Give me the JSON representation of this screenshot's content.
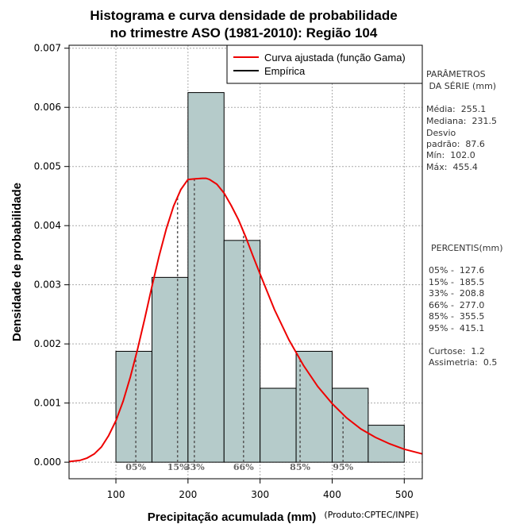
{
  "chart_data": {
    "type": "bar",
    "title_line1": "Histograma e curva densidade de probabilidade",
    "title_line2": "no trimestre ASO (1981-2010): Região 104",
    "xlabel": "Precipitação acumulada (mm)",
    "ylabel": "Densidade de probabilidade",
    "credit": "(Produto:CPTEC/INPE)",
    "xlim": [
      35,
      525
    ],
    "ylim": [
      -0.00028,
      0.00705
    ],
    "x_ticks": [
      100,
      200,
      300,
      400,
      500
    ],
    "y_ticks": [
      "0.000",
      "0.001",
      "0.002",
      "0.003",
      "0.004",
      "0.005",
      "0.006",
      "0.007"
    ],
    "bins": [
      {
        "start": 100,
        "end": 150,
        "density": 0.001875
      },
      {
        "start": 150,
        "end": 200,
        "density": 0.003125
      },
      {
        "start": 200,
        "end": 250,
        "density": 0.00625
      },
      {
        "start": 250,
        "end": 300,
        "density": 0.00375
      },
      {
        "start": 300,
        "end": 350,
        "density": 0.00125
      },
      {
        "start": 350,
        "end": 400,
        "density": 0.001875
      },
      {
        "start": 400,
        "end": 450,
        "density": 0.00125
      },
      {
        "start": 450,
        "end": 500,
        "density": 0.000625
      }
    ],
    "fitted_curve": {
      "name": "Curva ajustada (função Gama)",
      "color": "#ee0000",
      "x": [
        35,
        50,
        60,
        70,
        80,
        90,
        100,
        110,
        120,
        130,
        140,
        150,
        160,
        170,
        180,
        190,
        200,
        210,
        220,
        225,
        230,
        240,
        250,
        260,
        270,
        280,
        290,
        300,
        320,
        340,
        360,
        380,
        400,
        420,
        440,
        460,
        480,
        500,
        525
      ],
      "y": [
        1e-05,
        3e-05,
        7e-05,
        0.00014,
        0.00026,
        0.00045,
        0.0007,
        0.00103,
        0.00144,
        0.00191,
        0.00243,
        0.00297,
        0.00349,
        0.00395,
        0.00433,
        0.00461,
        0.00478,
        0.00479,
        0.0048,
        0.0048,
        0.00478,
        0.0047,
        0.00455,
        0.00434,
        0.0041,
        0.00381,
        0.00349,
        0.00318,
        0.00258,
        0.00207,
        0.00164,
        0.00128,
        0.00099,
        0.00075,
        0.00056,
        0.00042,
        0.00031,
        0.00022,
        0.00014
      ]
    },
    "empirical_label": "Empírica",
    "percentiles": [
      {
        "label": "05%",
        "value": 127.6
      },
      {
        "label": "15%",
        "value": 185.5
      },
      {
        "label": "33%",
        "value": 208.8
      },
      {
        "label": "66%",
        "value": 277.0
      },
      {
        "label": "85%",
        "value": 355.5
      },
      {
        "label": "95%",
        "value": 415.1
      }
    ],
    "legend": [
      "Curva ajustada (função Gama)",
      "Empírica"
    ],
    "legend_position": "top-right",
    "grid": true,
    "colors": {
      "bar_fill": "#b5cbca",
      "bar_stroke": "#000000",
      "curve": "#ee0000",
      "grid": "#aaaaaa",
      "percentile_line": "#555555"
    }
  },
  "side_panel": {
    "params_title_1": "PARÂMETROS",
    "params_title_2": " DA SÉRIE (mm)",
    "media": "Média:  255.1",
    "mediana": "Mediana:  231.5",
    "desvio_1": "Desvio",
    "desvio_2": "padrão:  87.6",
    "min": "Mín:  102.0",
    "max": "Máx:  455.4",
    "percentis_title": "PERCENTIS(mm)",
    "p05": "05% -  127.6",
    "p15": "15% -  185.5",
    "p33": "33% -  208.8",
    "p66": "66% -  277.0",
    "p85": "85% -  355.5",
    "p95": "95% -  415.1",
    "curtose": "Curtose:  1.2",
    "assimetria": "Assimetria:  0.5"
  }
}
